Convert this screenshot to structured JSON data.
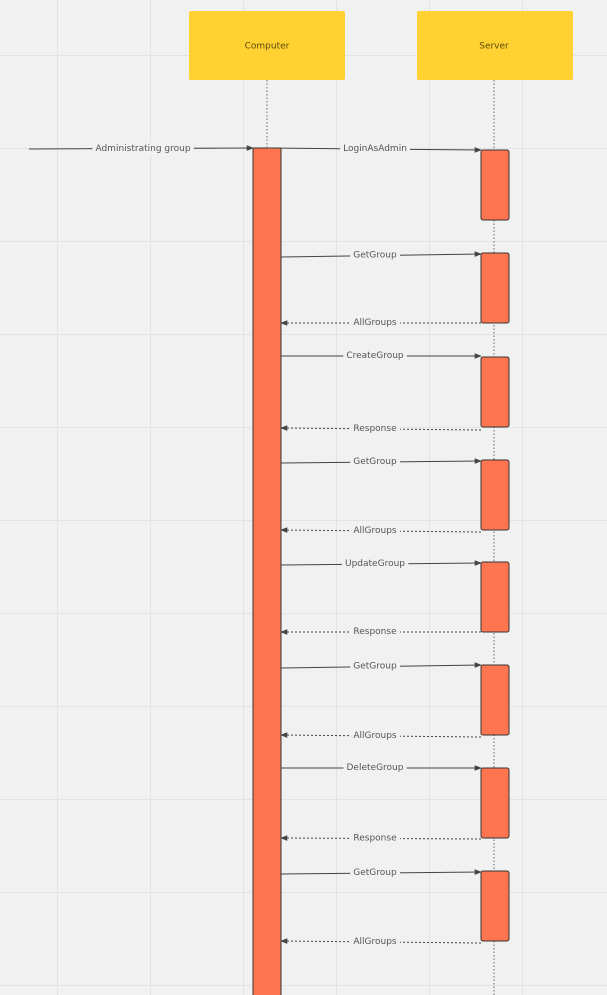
{
  "diagram": {
    "type": "sequence",
    "colors": {
      "actor_fill": "#ffd131",
      "activation_fill": "#ff7550",
      "activation_stroke": "#333333",
      "line": "#444444",
      "label_bg": "#f1f1f1"
    },
    "actors": [
      {
        "id": "computer",
        "label": "Computer"
      },
      {
        "id": "server",
        "label": "Server"
      }
    ],
    "entry_message": {
      "label": "Administrating group"
    },
    "messages": [
      {
        "label": "LoginAsAdmin",
        "from": "computer",
        "to": "server",
        "kind": "call"
      },
      {
        "label": "GetGroup",
        "from": "computer",
        "to": "server",
        "kind": "call"
      },
      {
        "label": "AllGroups",
        "from": "server",
        "to": "computer",
        "kind": "return"
      },
      {
        "label": "CreateGroup",
        "from": "computer",
        "to": "server",
        "kind": "call"
      },
      {
        "label": "Response",
        "from": "server",
        "to": "computer",
        "kind": "return"
      },
      {
        "label": "GetGroup",
        "from": "computer",
        "to": "server",
        "kind": "call"
      },
      {
        "label": "AllGroups",
        "from": "server",
        "to": "computer",
        "kind": "return"
      },
      {
        "label": "UpdateGroup",
        "from": "computer",
        "to": "server",
        "kind": "call"
      },
      {
        "label": "Response",
        "from": "server",
        "to": "computer",
        "kind": "return"
      },
      {
        "label": "GetGroup",
        "from": "computer",
        "to": "server",
        "kind": "call"
      },
      {
        "label": "AllGroups",
        "from": "server",
        "to": "computer",
        "kind": "return"
      },
      {
        "label": "DeleteGroup",
        "from": "computer",
        "to": "server",
        "kind": "call"
      },
      {
        "label": "Response",
        "from": "server",
        "to": "computer",
        "kind": "return"
      },
      {
        "label": "GetGroup",
        "from": "computer",
        "to": "server",
        "kind": "call"
      },
      {
        "label": "AllGroups",
        "from": "server",
        "to": "computer",
        "kind": "return"
      }
    ]
  }
}
